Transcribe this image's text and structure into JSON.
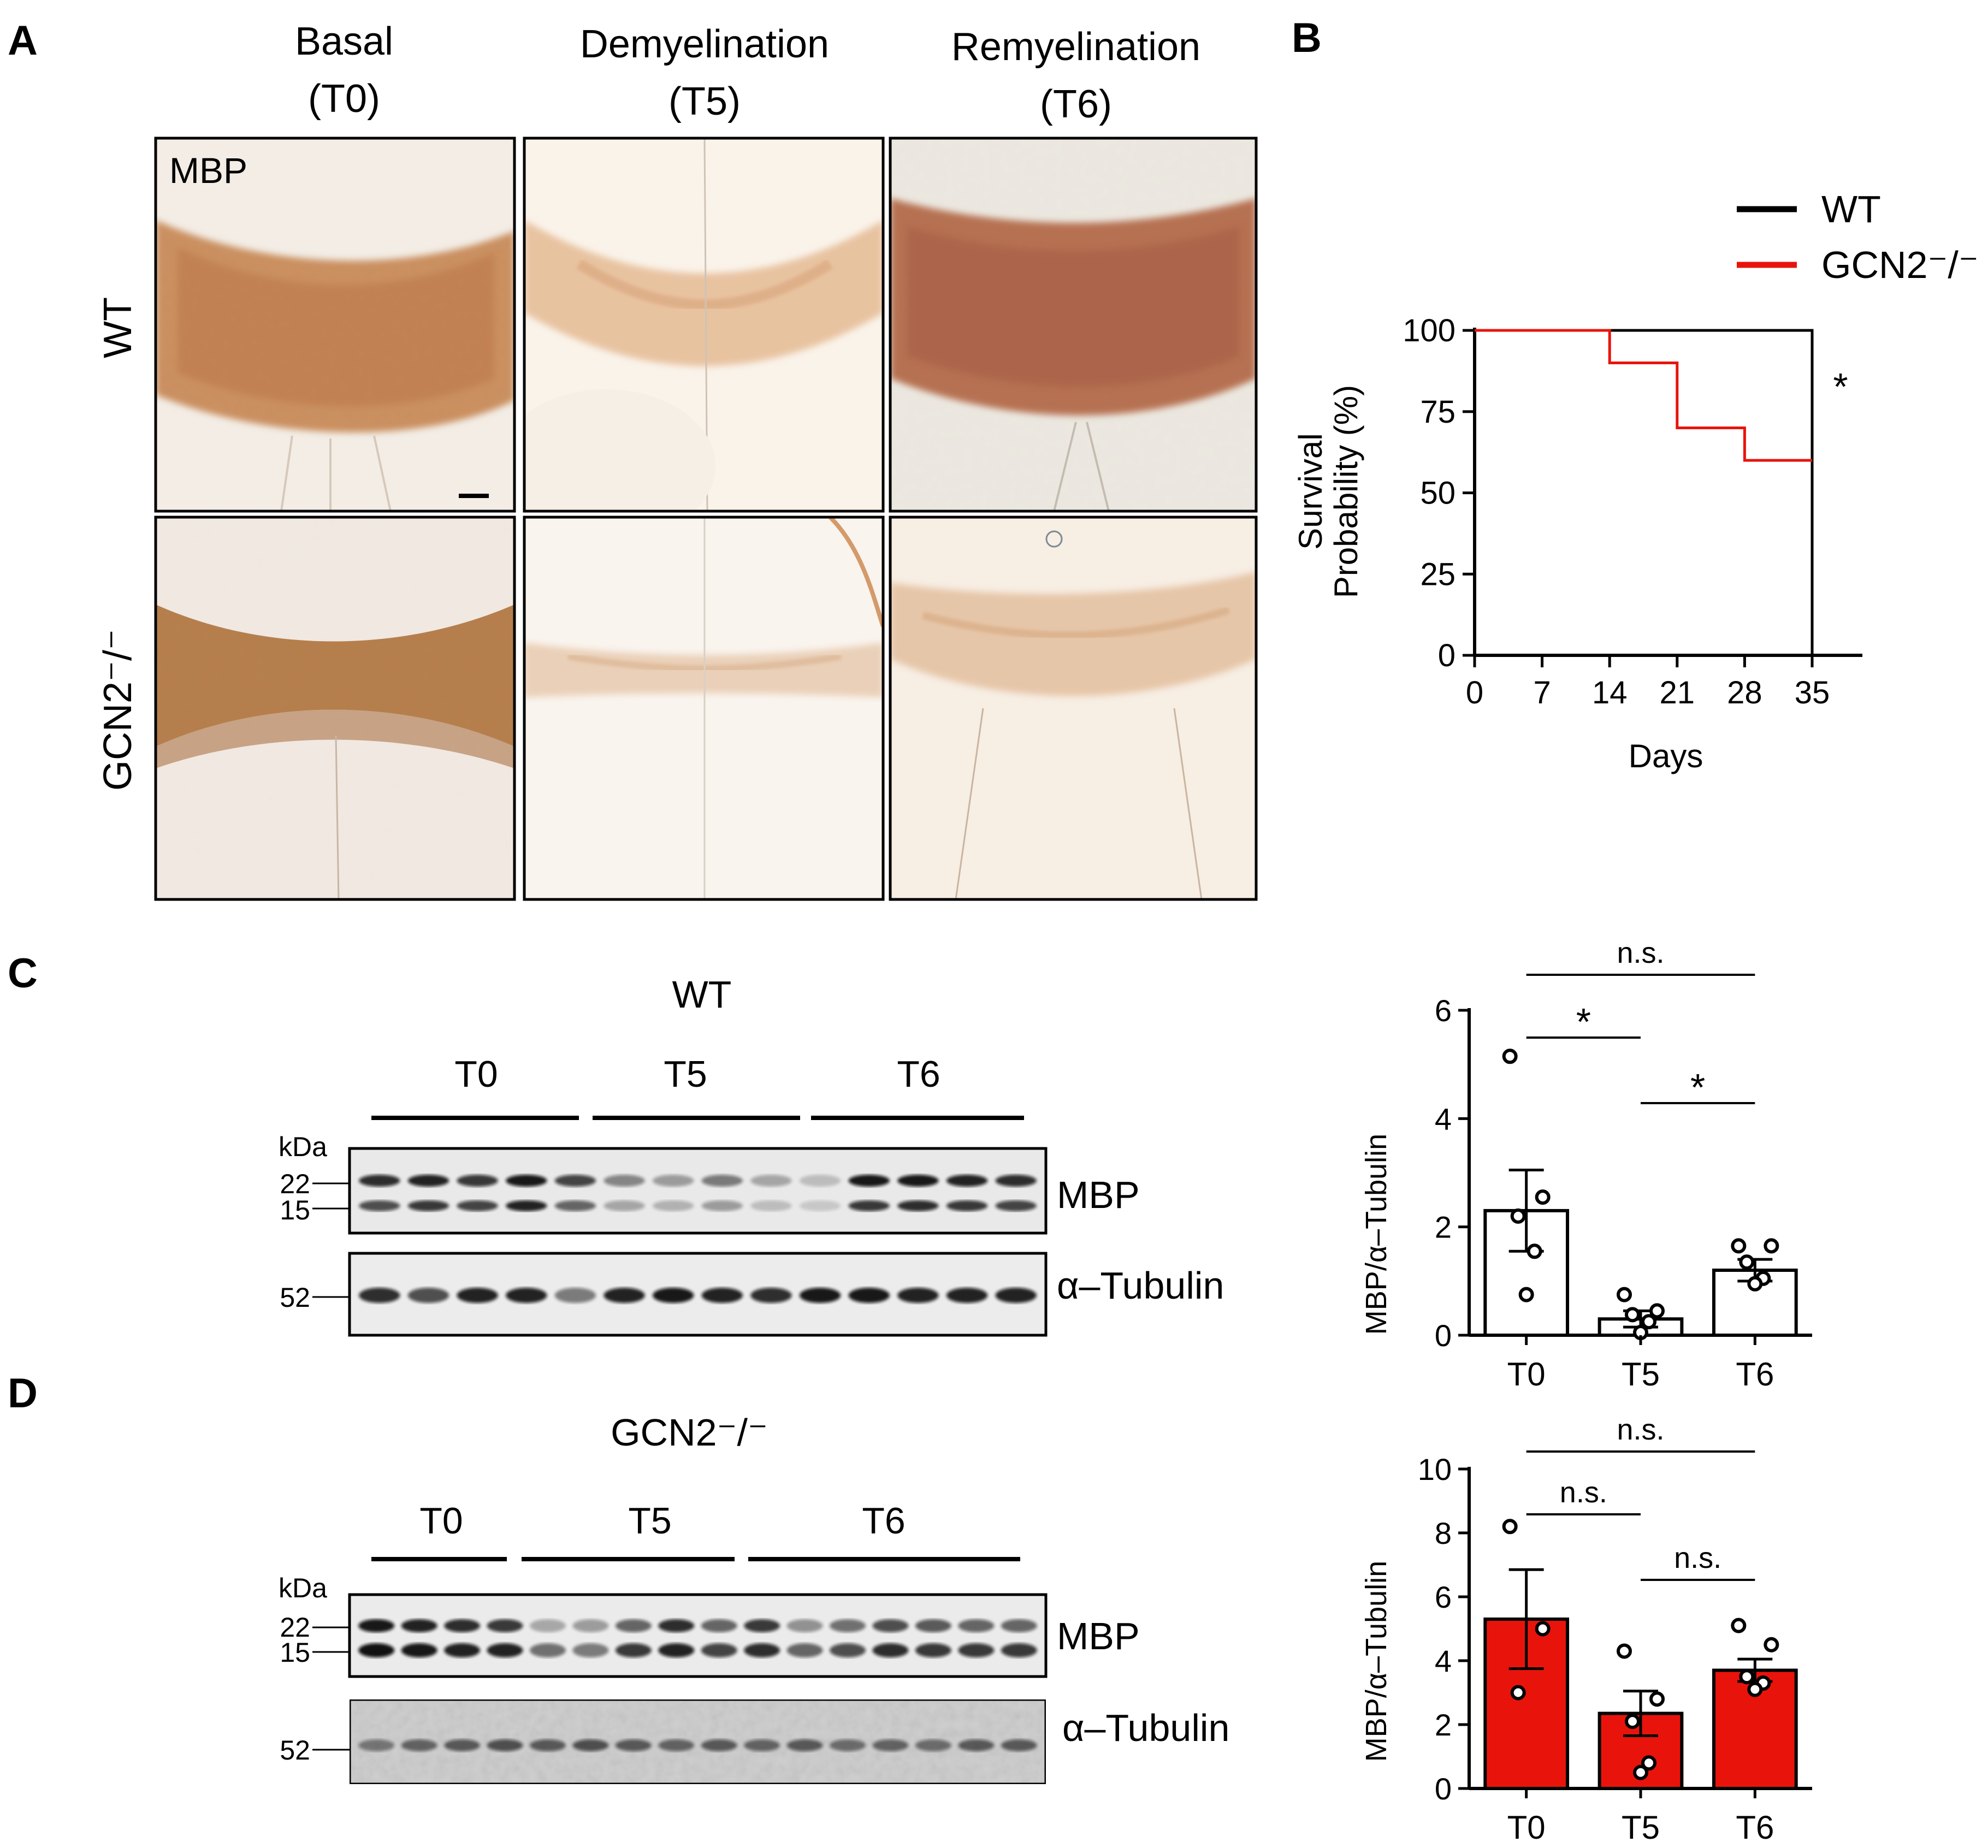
{
  "colors": {
    "wt_line": "#000000",
    "gcn2_line": "#e8140c",
    "bar_fill_red": "#e8140c",
    "stain": "#b5713d"
  },
  "panels": {
    "A": {
      "letter": "A",
      "columns": [
        {
          "line1": "Basal",
          "line2": "(T0)"
        },
        {
          "line1": "Demyelination",
          "line2": "(T5)"
        },
        {
          "line1": "Remyelination",
          "line2": "(T6)"
        }
      ],
      "rows": [
        "WT",
        "GCN2⁻/⁻"
      ],
      "stain_label": "MBP"
    },
    "B": {
      "letter": "B"
    },
    "C": {
      "letter": "C",
      "genotype": "WT",
      "groups": [
        "T0",
        "T5",
        "T6"
      ],
      "kda": "kDa",
      "markers": [
        "22",
        "15",
        "52"
      ],
      "bands": [
        "MBP",
        "α–Tubulin"
      ]
    },
    "D": {
      "letter": "D",
      "genotype": "GCN2⁻/⁻",
      "groups": [
        "T0",
        "T5",
        "T6"
      ],
      "kda": "kDa",
      "markers": [
        "22",
        "15",
        "52"
      ],
      "bands": [
        "MBP",
        "α–Tubulin"
      ]
    }
  },
  "chart_data": [
    {
      "type": "line",
      "panel": "B",
      "xlabel": "Days",
      "ylabel": "Survival Probability (%)",
      "xlim": [
        0,
        35
      ],
      "ylim": [
        0,
        100
      ],
      "xticks": [
        0,
        7,
        14,
        21,
        28,
        35
      ],
      "yticks": [
        0,
        25,
        50,
        75,
        100
      ],
      "series": [
        {
          "name": "WT",
          "color": "#000000",
          "x": [
            0,
            35
          ],
          "y": [
            100,
            100
          ]
        },
        {
          "name": "GCN2⁻/⁻",
          "color": "#e8140c",
          "x": [
            0,
            14,
            14,
            21,
            21,
            28,
            28,
            35
          ],
          "y": [
            100,
            100,
            90,
            90,
            70,
            70,
            60,
            60
          ]
        }
      ],
      "annotation": "*",
      "legend": "top-right"
    },
    {
      "type": "bar",
      "panel": "C",
      "ylabel": "MBP/α–Tubulin",
      "ylim": [
        0,
        6
      ],
      "yticks": [
        0,
        2,
        4,
        6
      ],
      "categories": [
        "T0",
        "T5",
        "T6"
      ],
      "values": [
        2.3,
        0.3,
        1.2
      ],
      "sem": [
        0.75,
        0.15,
        0.2
      ],
      "points": [
        [
          5.15,
          2.55,
          2.2,
          1.55,
          0.75
        ],
        [
          0.75,
          0.45,
          0.38,
          0.25,
          0.05
        ],
        [
          1.65,
          1.65,
          1.35,
          1.05,
          0.95
        ]
      ],
      "bar_color": "#ffffff",
      "comparisons": [
        {
          "from": "T0",
          "to": "T6",
          "label": "n.s."
        },
        {
          "from": "T0",
          "to": "T5",
          "label": "*"
        },
        {
          "from": "T5",
          "to": "T6",
          "label": "*"
        }
      ]
    },
    {
      "type": "bar",
      "panel": "D",
      "ylabel": "MBP/α–Tubulin",
      "ylim": [
        0,
        10
      ],
      "yticks": [
        0,
        2,
        4,
        6,
        8,
        10
      ],
      "categories": [
        "T0",
        "T5",
        "T6"
      ],
      "values": [
        5.3,
        2.35,
        3.7
      ],
      "sem": [
        1.55,
        0.7,
        0.35
      ],
      "points": [
        [
          8.2,
          5.0,
          3.0
        ],
        [
          4.3,
          2.8,
          2.1,
          0.8,
          0.5
        ],
        [
          5.1,
          4.5,
          3.5,
          3.3,
          3.1
        ]
      ],
      "bar_color": "#e8140c",
      "comparisons": [
        {
          "from": "T0",
          "to": "T6",
          "label": "n.s."
        },
        {
          "from": "T0",
          "to": "T5",
          "label": "n.s."
        },
        {
          "from": "T5",
          "to": "T6",
          "label": "n.s."
        }
      ]
    }
  ]
}
